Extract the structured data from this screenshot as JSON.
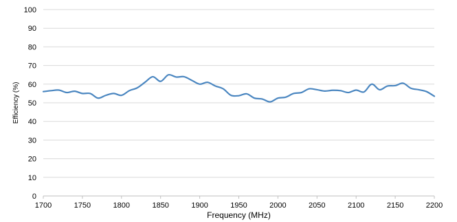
{
  "chart_data": {
    "type": "line",
    "title": "",
    "xlabel": "Frequency (MHz)",
    "ylabel": "Efficiency (%)",
    "xlim": [
      1700,
      2200
    ],
    "ylim": [
      0,
      100
    ],
    "x_ticks": [
      1700,
      1750,
      1800,
      1850,
      1900,
      1950,
      2000,
      2050,
      2100,
      2150,
      2200
    ],
    "y_ticks": [
      0,
      10,
      20,
      30,
      40,
      50,
      60,
      70,
      80,
      90,
      100
    ],
    "grid": "horizontal",
    "legend": "none",
    "series": [
      {
        "color": "#4a86c0",
        "x": [
          1700,
          1710,
          1720,
          1730,
          1740,
          1750,
          1760,
          1770,
          1780,
          1790,
          1800,
          1810,
          1820,
          1830,
          1840,
          1850,
          1860,
          1870,
          1880,
          1890,
          1900,
          1910,
          1920,
          1930,
          1940,
          1950,
          1960,
          1970,
          1980,
          1990,
          2000,
          2010,
          2020,
          2030,
          2040,
          2050,
          2060,
          2070,
          2080,
          2090,
          2100,
          2110,
          2120,
          2130,
          2140,
          2150,
          2160,
          2170,
          2180,
          2190,
          2200
        ],
        "values": [
          56,
          56.5,
          56.8,
          55.5,
          56.2,
          55,
          55,
          52.5,
          54,
          55,
          54,
          56.5,
          58,
          61,
          64,
          61.5,
          65,
          63.8,
          64,
          62,
          60,
          61,
          59,
          57.5,
          54,
          53.8,
          54.8,
          52.5,
          52,
          50.5,
          52.5,
          53,
          55,
          55.5,
          57.5,
          57,
          56.3,
          56.7,
          56.5,
          55.5,
          56.8,
          55.8,
          60,
          57,
          59,
          59.2,
          60.5,
          57.8,
          57,
          56,
          53.5
        ]
      }
    ]
  }
}
